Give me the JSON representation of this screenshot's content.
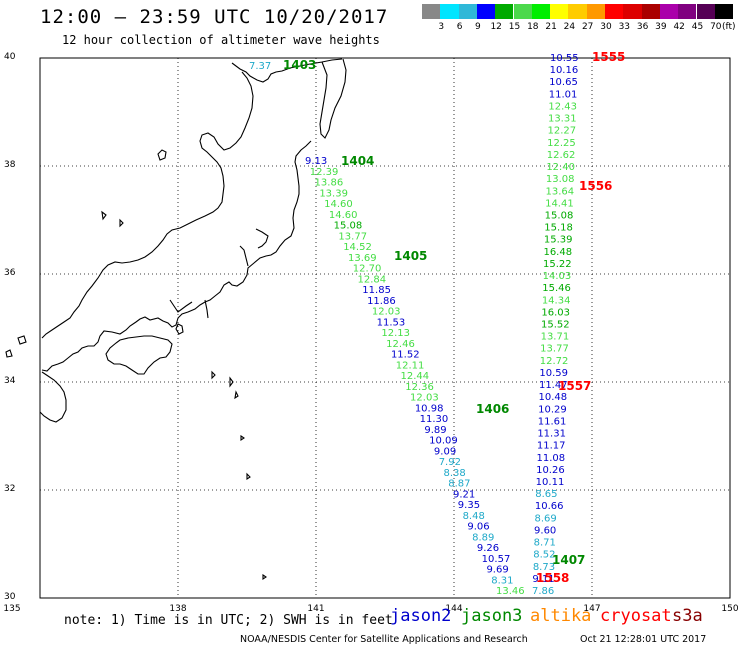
{
  "header": {
    "title": "12:00 – 23:59 UTC 10/20/2017",
    "subtitle": "12 hour collection of altimeter wave heights"
  },
  "colorbar": {
    "unit": "(ft)",
    "bins": [
      {
        "label": "",
        "color": "#888888"
      },
      {
        "label": "3",
        "color": "#00e5ff"
      },
      {
        "label": "6",
        "color": "#2fb8d8"
      },
      {
        "label": "9",
        "color": "#0000ff"
      },
      {
        "label": "12",
        "color": "#00aa00"
      },
      {
        "label": "15",
        "color": "#4cd94c"
      },
      {
        "label": "18",
        "color": "#00ee00"
      },
      {
        "label": "21",
        "color": "#ffff00"
      },
      {
        "label": "24",
        "color": "#ffcc00"
      },
      {
        "label": "27",
        "color": "#ff9900"
      },
      {
        "label": "30",
        "color": "#ff0000"
      },
      {
        "label": "33",
        "color": "#dd0000"
      },
      {
        "label": "36",
        "color": "#aa0000"
      },
      {
        "label": "39",
        "color": "#aa00aa"
      },
      {
        "label": "42",
        "color": "#800080"
      },
      {
        "label": "45",
        "color": "#550055"
      },
      {
        "label": "70",
        "color": "#000000"
      }
    ]
  },
  "axes": {
    "lat_labels": [
      "40",
      "38",
      "36",
      "34",
      "32",
      "30"
    ],
    "lon_labels": [
      "135",
      "138",
      "141",
      "144",
      "147",
      "150"
    ]
  },
  "map_region": {
    "lon_range": [
      135,
      150
    ],
    "lat_range": [
      30,
      40
    ],
    "coastline": "Japan (Honshu, Shikoku, Kyushu)"
  },
  "colors": {
    "jason2": "#0000cc",
    "jason3": "#008800",
    "jason3_light": "#44dd44",
    "altika": "#ff8800",
    "cryosat": "#ff0000",
    "s3a": "#880000",
    "cyan_swh": "#1fa9c9"
  },
  "orbit_labels": [
    {
      "text": "1403",
      "color": "#008800"
    },
    {
      "text": "1404",
      "color": "#008800"
    },
    {
      "text": "1405",
      "color": "#008800"
    },
    {
      "text": "1406",
      "color": "#008800"
    },
    {
      "text": "1407",
      "color": "#008800"
    },
    {
      "text": "1555",
      "color": "#ff0000"
    },
    {
      "text": "1556",
      "color": "#ff0000"
    },
    {
      "text": "1557",
      "color": "#ff0000"
    },
    {
      "text": "1558",
      "color": "#ff0000"
    }
  ],
  "track_1403": [
    {
      "v": "7.37",
      "c": "#1fa9c9"
    }
  ],
  "track_diagonal": [
    {
      "v": "9.13",
      "c": "#0000cc"
    },
    {
      "v": "12.39",
      "c": "#44dd44"
    },
    {
      "v": "13.86",
      "c": "#44dd44"
    },
    {
      "v": "13.39",
      "c": "#44dd44"
    },
    {
      "v": "14.60",
      "c": "#44dd44"
    },
    {
      "v": "14.60",
      "c": "#44dd44"
    },
    {
      "v": "15.08",
      "c": "#00aa00"
    },
    {
      "v": "13.77",
      "c": "#44dd44"
    },
    {
      "v": "14.52",
      "c": "#44dd44"
    },
    {
      "v": "13.69",
      "c": "#44dd44"
    },
    {
      "v": "12.70",
      "c": "#44dd44"
    },
    {
      "v": "12.84",
      "c": "#44dd44"
    },
    {
      "v": "11.85",
      "c": "#0000cc"
    },
    {
      "v": "11.86",
      "c": "#0000cc"
    },
    {
      "v": "12.03",
      "c": "#44dd44"
    },
    {
      "v": "11.53",
      "c": "#0000cc"
    },
    {
      "v": "12.13",
      "c": "#44dd44"
    },
    {
      "v": "12.46",
      "c": "#44dd44"
    },
    {
      "v": "11.52",
      "c": "#0000cc"
    },
    {
      "v": "12.11",
      "c": "#44dd44"
    },
    {
      "v": "12.44",
      "c": "#44dd44"
    },
    {
      "v": "12.36",
      "c": "#44dd44"
    },
    {
      "v": "12.03",
      "c": "#44dd44"
    },
    {
      "v": "10.98",
      "c": "#0000cc"
    },
    {
      "v": "11.30",
      "c": "#0000cc"
    },
    {
      "v": "9.89",
      "c": "#0000cc"
    },
    {
      "v": "10.09",
      "c": "#0000cc"
    },
    {
      "v": "9.09",
      "c": "#0000cc"
    },
    {
      "v": "7.92",
      "c": "#1fa9c9"
    },
    {
      "v": "8.38",
      "c": "#1fa9c9"
    },
    {
      "v": "8.87",
      "c": "#1fa9c9"
    },
    {
      "v": "9.21",
      "c": "#0000cc"
    },
    {
      "v": "9.35",
      "c": "#0000cc"
    },
    {
      "v": "8.48",
      "c": "#1fa9c9"
    },
    {
      "v": "9.06",
      "c": "#0000cc"
    },
    {
      "v": "8.89",
      "c": "#1fa9c9"
    },
    {
      "v": "9.26",
      "c": "#0000cc"
    },
    {
      "v": "10.57",
      "c": "#0000cc"
    },
    {
      "v": "9.69",
      "c": "#0000cc"
    },
    {
      "v": "8.31",
      "c": "#1fa9c9"
    },
    {
      "v": "13.46",
      "c": "#44dd44"
    }
  ],
  "track_vertical": [
    {
      "v": "10.55",
      "c": "#0000cc"
    },
    {
      "v": "10.16",
      "c": "#0000cc"
    },
    {
      "v": "10.65",
      "c": "#0000cc"
    },
    {
      "v": "11.01",
      "c": "#0000cc"
    },
    {
      "v": "12.43",
      "c": "#44dd44"
    },
    {
      "v": "13.31",
      "c": "#44dd44"
    },
    {
      "v": "12.27",
      "c": "#44dd44"
    },
    {
      "v": "12.25",
      "c": "#44dd44"
    },
    {
      "v": "12.62",
      "c": "#44dd44"
    },
    {
      "v": "12.40",
      "c": "#44dd44"
    },
    {
      "v": "13.08",
      "c": "#44dd44"
    },
    {
      "v": "13.64",
      "c": "#44dd44"
    },
    {
      "v": "14.41",
      "c": "#44dd44"
    },
    {
      "v": "15.08",
      "c": "#00aa00"
    },
    {
      "v": "15.18",
      "c": "#00aa00"
    },
    {
      "v": "15.39",
      "c": "#00aa00"
    },
    {
      "v": "16.48",
      "c": "#00aa00"
    },
    {
      "v": "15.22",
      "c": "#00aa00"
    },
    {
      "v": "14.03",
      "c": "#44dd44"
    },
    {
      "v": "15.46",
      "c": "#00aa00"
    },
    {
      "v": "14.34",
      "c": "#44dd44"
    },
    {
      "v": "16.03",
      "c": "#00aa00"
    },
    {
      "v": "15.52",
      "c": "#00aa00"
    },
    {
      "v": "13.71",
      "c": "#44dd44"
    },
    {
      "v": "13.77",
      "c": "#44dd44"
    },
    {
      "v": "12.72",
      "c": "#44dd44"
    },
    {
      "v": "10.59",
      "c": "#0000cc"
    },
    {
      "v": "11.47",
      "c": "#0000cc"
    },
    {
      "v": "10.48",
      "c": "#0000cc"
    },
    {
      "v": "10.29",
      "c": "#0000cc"
    },
    {
      "v": "11.61",
      "c": "#0000cc"
    },
    {
      "v": "11.31",
      "c": "#0000cc"
    },
    {
      "v": "11.17",
      "c": "#0000cc"
    },
    {
      "v": "11.08",
      "c": "#0000cc"
    },
    {
      "v": "10.26",
      "c": "#0000cc"
    },
    {
      "v": "10.11",
      "c": "#0000cc"
    },
    {
      "v": "8.65",
      "c": "#1fa9c9"
    },
    {
      "v": "10.66",
      "c": "#0000cc"
    },
    {
      "v": "8.69",
      "c": "#1fa9c9"
    },
    {
      "v": "9.60",
      "c": "#0000cc"
    },
    {
      "v": "8.71",
      "c": "#1fa9c9"
    },
    {
      "v": "8.52",
      "c": "#1fa9c9"
    },
    {
      "v": "8.73",
      "c": "#1fa9c9"
    },
    {
      "v": "9.11",
      "c": "#0000cc"
    },
    {
      "v": "7.86",
      "c": "#1fa9c9"
    }
  ],
  "note": "note: 1) Time is in UTC; 2) SWH is in feet",
  "legend": [
    {
      "text": "jason2",
      "color": "#0000cc"
    },
    {
      "text": "jason3",
      "color": "#008800"
    },
    {
      "text": "altika",
      "color": "#ff8800"
    },
    {
      "text": "cryosat",
      "color": "#ff0000"
    },
    {
      "text": "s3a",
      "color": "#880000"
    }
  ],
  "footer": {
    "credit": "NOAA/NESDIS Center for Satellite Applications and Research",
    "timestamp": "Oct 21 12:28:01 UTC 2017"
  }
}
